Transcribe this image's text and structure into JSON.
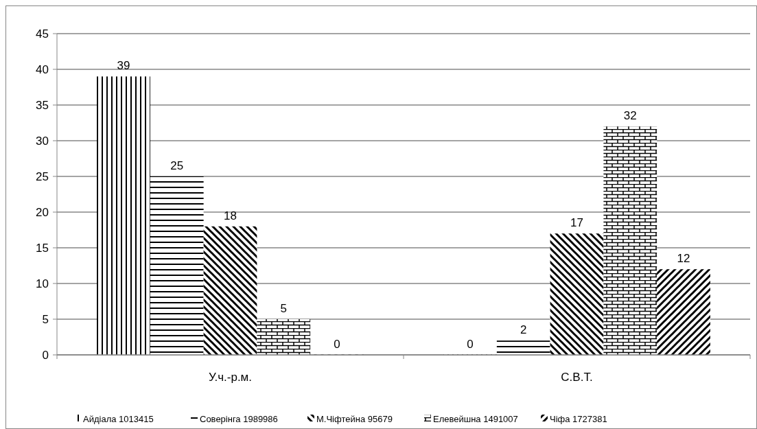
{
  "chart_data": {
    "type": "bar",
    "categories": [
      "У.ч.-р.м.",
      "С.В.Т."
    ],
    "series": [
      {
        "name": "Айдіала 1013415",
        "color": "#000000",
        "values": [
          39,
          0
        ]
      },
      {
        "name": "Соверінга 1989986",
        "color": "#000000",
        "values": [
          25,
          2
        ]
      },
      {
        "name": "М.Чіфтейна 95679",
        "color": "#000000",
        "values": [
          18,
          17
        ]
      },
      {
        "name": "Елевейшна 1491007",
        "color": "#000000",
        "values": [
          5,
          32
        ]
      },
      {
        "name": "Чіфа 1727381",
        "color": "#000000",
        "values": [
          0,
          12
        ]
      }
    ],
    "ylim": [
      0,
      45
    ],
    "yticks": [
      0,
      5,
      10,
      15,
      20,
      25,
      30,
      35,
      40,
      45
    ],
    "grid": "y",
    "legend": "bottom",
    "data_labels": true
  }
}
